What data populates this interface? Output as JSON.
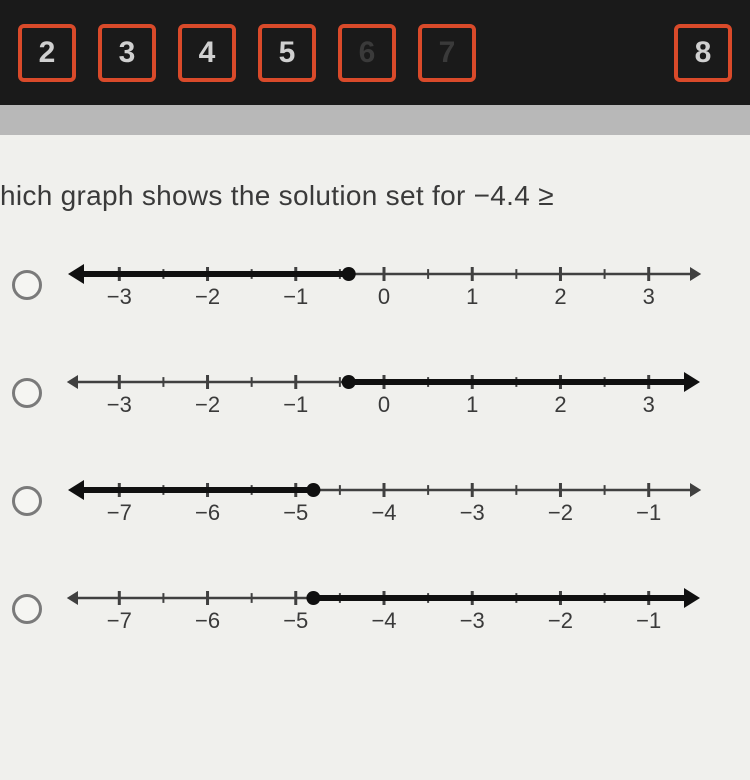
{
  "nav": {
    "buttons": [
      {
        "label": "2",
        "dim": false
      },
      {
        "label": "3",
        "dim": false
      },
      {
        "label": "4",
        "dim": false
      },
      {
        "label": "5",
        "dim": false
      },
      {
        "label": "6",
        "dim": true
      },
      {
        "label": "7",
        "dim": true
      }
    ],
    "last": {
      "label": "8",
      "dim": false
    },
    "border_color": "#d94a2a",
    "bg_color": "#1a1a1a",
    "text_color": "#d0d0d0",
    "dim_text_color": "#3a3a3a"
  },
  "question": "hich graph shows the solution set for  −4.4 ≥",
  "numberlines": [
    {
      "min": -3.4,
      "max": 3.4,
      "ticks": [
        -3,
        -2,
        -1,
        0,
        1,
        2,
        3
      ],
      "minor_step": 0.5,
      "fill_from": -3.4,
      "fill_to": -0.4,
      "closed_point": -0.4,
      "arrow_left": true,
      "arrow_right": false,
      "thin_arrow_right": true,
      "thin_arrow_left": false,
      "label_fontsize": 22,
      "axis_color": "#404040",
      "bold_color": "#101010",
      "bold_width": 6,
      "axis_width": 2.5,
      "tick_height": 14,
      "dot_radius": 7
    },
    {
      "min": -3.4,
      "max": 3.4,
      "ticks": [
        -3,
        -2,
        -1,
        0,
        1,
        2,
        3
      ],
      "minor_step": 0.5,
      "fill_from": -0.4,
      "fill_to": 3.4,
      "closed_point": -0.4,
      "arrow_left": false,
      "arrow_right": true,
      "thin_arrow_right": false,
      "thin_arrow_left": true,
      "label_fontsize": 22,
      "axis_color": "#404040",
      "bold_color": "#101010",
      "bold_width": 6,
      "axis_width": 2.5,
      "tick_height": 14,
      "dot_radius": 7
    },
    {
      "min": -7.4,
      "max": -0.6,
      "ticks": [
        -7,
        -6,
        -5,
        -4,
        -3,
        -2,
        -1
      ],
      "minor_step": 0.5,
      "fill_from": -7.4,
      "fill_to": -4.8,
      "closed_point": -4.8,
      "arrow_left": true,
      "arrow_right": false,
      "thin_arrow_right": true,
      "thin_arrow_left": false,
      "label_fontsize": 22,
      "axis_color": "#404040",
      "bold_color": "#101010",
      "bold_width": 6,
      "axis_width": 2.5,
      "tick_height": 14,
      "dot_radius": 7
    },
    {
      "min": -7.4,
      "max": -0.6,
      "ticks": [
        -7,
        -6,
        -5,
        -4,
        -3,
        -2,
        -1
      ],
      "minor_step": 0.5,
      "fill_from": -4.8,
      "fill_to": -0.6,
      "closed_point": -4.8,
      "arrow_left": false,
      "arrow_right": true,
      "thin_arrow_right": false,
      "thin_arrow_left": true,
      "label_fontsize": 22,
      "axis_color": "#404040",
      "bold_color": "#101010",
      "bold_width": 6,
      "axis_width": 2.5,
      "tick_height": 14,
      "dot_radius": 7
    }
  ]
}
